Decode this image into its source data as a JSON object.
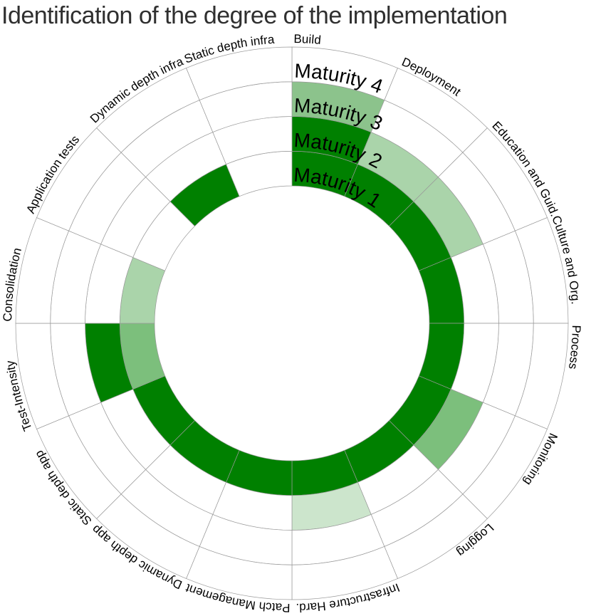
{
  "title": "Identification of the degree of the implementation",
  "chart_data": {
    "type": "heatmap",
    "variant": "radial-maturity-wheel",
    "title": "Identification of the degree of the implementation",
    "rings": [
      "Maturity 1",
      "Maturity 2",
      "Maturity 3",
      "Maturity 4"
    ],
    "segments": [
      {
        "label": "Build",
        "fills": [
          1,
          1,
          0.45,
          0
        ]
      },
      {
        "label": "Deployment",
        "fills": [
          1,
          0.33,
          0,
          0
        ]
      },
      {
        "label": "Education and Guid.",
        "fills": [
          1,
          0.33,
          0,
          0
        ]
      },
      {
        "label": "Culture and Org.",
        "fills": [
          1,
          0,
          0,
          0
        ]
      },
      {
        "label": "Process",
        "fills": [
          1,
          0,
          0,
          0
        ]
      },
      {
        "label": "Monitoring",
        "fills": [
          1,
          0.5,
          0,
          0
        ]
      },
      {
        "label": "Logging",
        "fills": [
          1,
          0,
          0,
          0
        ]
      },
      {
        "label": "Infrastructure Hard.",
        "fills": [
          1,
          0.2,
          0,
          0
        ]
      },
      {
        "label": "Patch Management",
        "fills": [
          1,
          0,
          0,
          0
        ]
      },
      {
        "label": "Dynamic depth app",
        "fills": [
          1,
          0,
          0,
          0
        ]
      },
      {
        "label": "Static depth app",
        "fills": [
          1,
          0,
          0,
          0
        ]
      },
      {
        "label": "Test-Intensity",
        "fills": [
          0.5,
          1,
          0,
          0
        ]
      },
      {
        "label": "Consolidation",
        "fills": [
          0.33,
          0,
          0,
          0
        ]
      },
      {
        "label": "Application tests",
        "fills": [
          0,
          0,
          0,
          0
        ]
      },
      {
        "label": "Dynamic depth infra",
        "fills": [
          1,
          0,
          0,
          0
        ]
      },
      {
        "label": "Static depth infra",
        "fills": [
          0,
          0,
          0,
          0
        ]
      }
    ],
    "palette": [
      {
        "value": 1,
        "color": "#008000"
      },
      {
        "value": 0.5,
        "color": "#7cbf7c"
      },
      {
        "value": 0.45,
        "color": "#8cc38c"
      },
      {
        "value": 0.33,
        "color": "#aad4aa"
      },
      {
        "value": 0.2,
        "color": "#cce5cc"
      },
      {
        "value": 0,
        "color": "#ffffff"
      }
    ],
    "start_angle_deg": 0,
    "clockwise": true,
    "grid": true,
    "grid_color": "#999999",
    "text_color": "#000000",
    "legend_position": "none"
  }
}
